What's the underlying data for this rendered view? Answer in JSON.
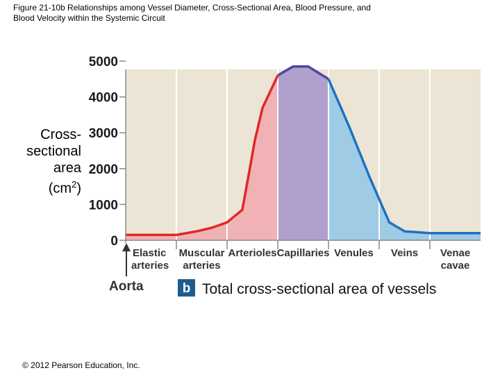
{
  "figure_title_line1": "Figure 21-10b Relationships among Vessel Diameter, Cross-Sectional Area, Blood Pressure, and",
  "figure_title_line2": "Blood Velocity within the Systemic Circuit",
  "copyright": "© 2012 Pearson Education, Inc.",
  "panel_badge": "b",
  "chart_data": {
    "type": "area",
    "title": "Total cross-sectional area of vessels",
    "ylabel": {
      "line1": "Cross-",
      "line2": "sectional",
      "line3": "area",
      "line4": "(cm",
      "sup": "2",
      "line4_end": ")"
    },
    "xlabel": "",
    "ylim": [
      0,
      5000
    ],
    "yticks": [
      "0",
      "1000",
      "2000",
      "3000",
      "4000",
      "5000"
    ],
    "ytick_values": [
      0,
      1000,
      2000,
      3000,
      4000,
      5000
    ],
    "aorta_label": "Aorta",
    "categories": [
      {
        "line1": "Elastic",
        "line2": "arteries"
      },
      {
        "line1": "Muscular",
        "line2": "arteries"
      },
      {
        "line1": "Arterioles",
        "line2": ""
      },
      {
        "line1": "Capillaries",
        "line2": ""
      },
      {
        "line1": "Venules",
        "line2": ""
      },
      {
        "line1": "Veins",
        "line2": ""
      },
      {
        "line1": "Venae",
        "line2": "cavae"
      }
    ],
    "x_extent": [
      0,
      7
    ],
    "boundaries": [
      1,
      2,
      3,
      4,
      5,
      6
    ],
    "curve": [
      [
        0,
        150
      ],
      [
        1,
        150
      ],
      [
        1.4,
        250
      ],
      [
        1.7,
        350
      ],
      [
        2.0,
        500
      ],
      [
        2.3,
        850
      ],
      [
        2.55,
        2800
      ],
      [
        2.7,
        3700
      ],
      [
        3.0,
        4600
      ],
      [
        3.3,
        4850
      ],
      [
        3.6,
        4850
      ],
      [
        4.0,
        4500
      ],
      [
        4.4,
        3200
      ],
      [
        4.8,
        1800
      ],
      [
        5.2,
        500
      ],
      [
        5.5,
        250
      ],
      [
        6.0,
        200
      ],
      [
        7.0,
        200
      ]
    ],
    "regions": [
      {
        "from": 0,
        "to": 3,
        "color": "#f0b2b4"
      },
      {
        "from": 3,
        "to": 4,
        "color": "#b19fce"
      },
      {
        "from": 4,
        "to": 7,
        "color": "#9fcbe5"
      }
    ],
    "line_colors": {
      "arterial": "#e0272a",
      "capillary": "#4e47a3",
      "venous": "#1d72c2"
    },
    "plot_background": "#ece5d6",
    "badge_color": "#1f5c8c"
  }
}
